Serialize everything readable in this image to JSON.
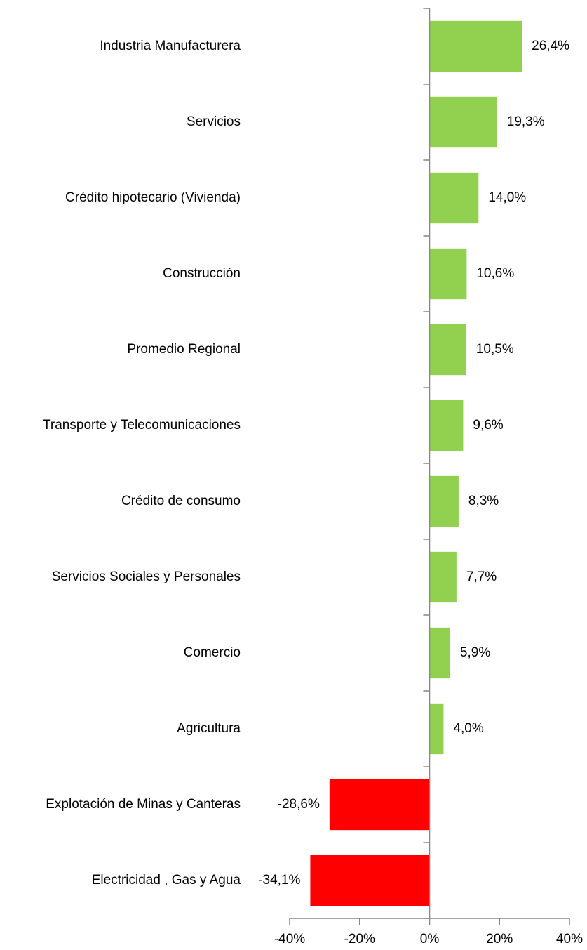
{
  "chart_data": {
    "type": "barh",
    "categories": [
      "Industria Manufacturera",
      "Servicios",
      "Crédito hipotecario (Vivienda)",
      "Construcción",
      "Promedio Regional",
      "Transporte y Telecomunicaciones",
      "Crédito de consumo",
      "Servicios Sociales y Personales",
      "Comercio",
      "Agricultura",
      "Explotación de Minas y Canteras",
      "Electricidad , Gas y Agua"
    ],
    "values": [
      26.4,
      19.3,
      14.0,
      10.6,
      10.5,
      9.6,
      8.3,
      7.7,
      5.9,
      4.0,
      -28.6,
      -34.1
    ],
    "value_labels": [
      "26,4%",
      "19,3%",
      "14,0%",
      "10,6%",
      "10,5%",
      "9,6%",
      "8,3%",
      "7,7%",
      "5,9%",
      "4,0%",
      "-28,6%",
      "-34,1%"
    ],
    "colors": [
      "#92d050",
      "#92d050",
      "#92d050",
      "#92d050",
      "#92d050",
      "#92d050",
      "#92d050",
      "#92d050",
      "#92d050",
      "#92d050",
      "#ff0000",
      "#ff0000"
    ],
    "xlim": [
      -40,
      40
    ],
    "xticks": [
      {
        "value": -40,
        "label": "-40%"
      },
      {
        "value": -20,
        "label": "-20%"
      },
      {
        "value": 0,
        "label": "0%"
      },
      {
        "value": 20,
        "label": "20%"
      },
      {
        "value": 40,
        "label": "40%"
      }
    ],
    "grid": false
  }
}
